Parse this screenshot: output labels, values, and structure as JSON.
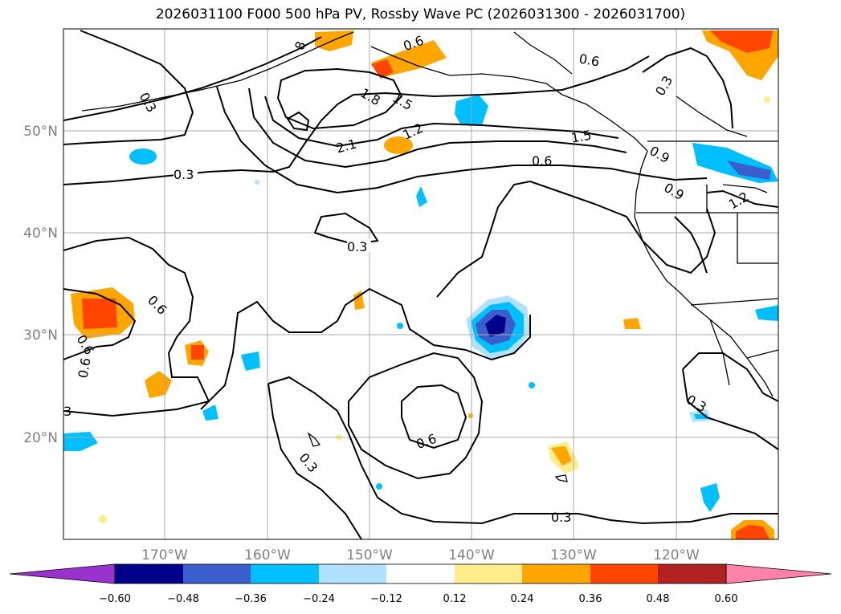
{
  "title": "2026031100 F000 500 hPa PV, Rossby Wave PC (2026031300 - 2026031700)",
  "map": {
    "lon_labels": [
      "170°W",
      "160°W",
      "150°W",
      "140°W",
      "130°W",
      "120°W"
    ],
    "lat_labels": [
      "50°N",
      "40°N",
      "30°N",
      "20°N"
    ],
    "contour_labels": [
      {
        "text": "0.3"
      },
      {
        "text": "0.3"
      },
      {
        "text": "0.3"
      },
      {
        "text": "0.3"
      },
      {
        "text": "0.3"
      },
      {
        "text": "0.3"
      },
      {
        "text": "0.3"
      },
      {
        "text": "0.3"
      },
      {
        "text": "0.6"
      },
      {
        "text": "0.6"
      },
      {
        "text": "0.6"
      },
      {
        "text": "0.6"
      },
      {
        "text": "0.6"
      },
      {
        "text": "0.6"
      },
      {
        "text": "0.6"
      },
      {
        "text": "0.9"
      },
      {
        "text": "0.9"
      },
      {
        "text": "1.2"
      },
      {
        "text": "1.2"
      },
      {
        "text": "1.5"
      },
      {
        "text": "1.5"
      },
      {
        "text": "1.8"
      },
      {
        "text": "2.1"
      },
      {
        "text": "8"
      },
      {
        "text": "3"
      }
    ]
  },
  "colorbar": {
    "ticks": [
      "−0.60",
      "−0.48",
      "−0.36",
      "−0.24",
      "−0.12",
      "0.12",
      "0.24",
      "0.36",
      "0.48",
      "0.60"
    ],
    "colors": [
      "#9a32cd",
      "#00008b",
      "#3a5fcd",
      "#00bfff",
      "#b0e2ff",
      "#ffffff",
      "#ffec8b",
      "#ffa500",
      "#ff4500",
      "#b22222",
      "#ff82ab"
    ]
  }
}
